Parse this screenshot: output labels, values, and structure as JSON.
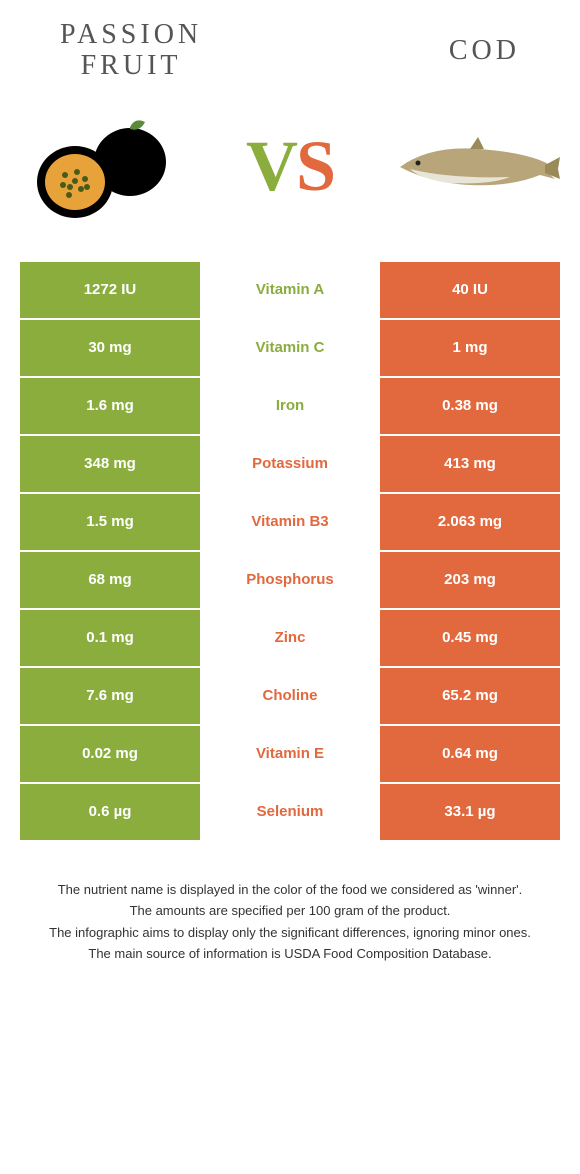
{
  "header": {
    "left_title_line1": "Passion",
    "left_title_line2": "fruit",
    "right_title": "Cod",
    "vs_v": "V",
    "vs_s": "S"
  },
  "colors": {
    "left_bg": "#8aad3e",
    "right_bg": "#e2683e",
    "left_text": "#8aad3e",
    "right_text": "#e2683e"
  },
  "table": {
    "rows": [
      {
        "left": "1272 IU",
        "nutrient": "Vitamin A",
        "right": "40 IU",
        "winner": "left"
      },
      {
        "left": "30 mg",
        "nutrient": "Vitamin C",
        "right": "1 mg",
        "winner": "left"
      },
      {
        "left": "1.6 mg",
        "nutrient": "Iron",
        "right": "0.38 mg",
        "winner": "left"
      },
      {
        "left": "348 mg",
        "nutrient": "Potassium",
        "right": "413 mg",
        "winner": "right"
      },
      {
        "left": "1.5 mg",
        "nutrient": "Vitamin B3",
        "right": "2.063 mg",
        "winner": "right"
      },
      {
        "left": "68 mg",
        "nutrient": "Phosphorus",
        "right": "203 mg",
        "winner": "right"
      },
      {
        "left": "0.1 mg",
        "nutrient": "Zinc",
        "right": "0.45 mg",
        "winner": "right"
      },
      {
        "left": "7.6 mg",
        "nutrient": "Choline",
        "right": "65.2 mg",
        "winner": "right"
      },
      {
        "left": "0.02 mg",
        "nutrient": "Vitamin E",
        "right": "0.64 mg",
        "winner": "right"
      },
      {
        "left": "0.6 µg",
        "nutrient": "Selenium",
        "right": "33.1 µg",
        "winner": "right"
      }
    ]
  },
  "footer": {
    "line1": "The nutrient name is displayed in the color of the food we considered as 'winner'.",
    "line2": "The amounts are specified per 100 gram of the product.",
    "line3": "The infographic aims to display only the significant differences, ignoring minor ones.",
    "line4": "The main source of information is USDA Food Composition Database."
  }
}
